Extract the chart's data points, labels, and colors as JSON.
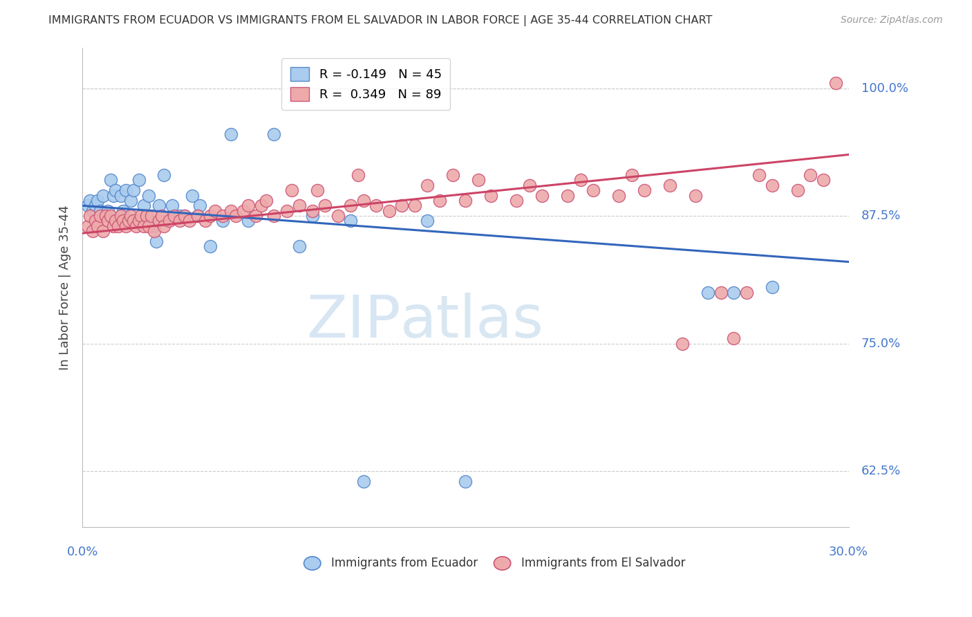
{
  "title": "IMMIGRANTS FROM ECUADOR VS IMMIGRANTS FROM EL SALVADOR IN LABOR FORCE | AGE 35-44 CORRELATION CHART",
  "source": "Source: ZipAtlas.com",
  "ylabel": "In Labor Force | Age 35-44",
  "xlim": [
    0.0,
    30.0
  ],
  "ylim": [
    57.0,
    104.0
  ],
  "yticks": [
    62.5,
    75.0,
    87.5,
    100.0
  ],
  "ytick_labels": [
    "62.5%",
    "75.0%",
    "87.5%",
    "100.0%"
  ],
  "ecuador_color_edge": "#5588CC",
  "ecuador_color_fill": "#AACCEE",
  "elsalvador_color_edge": "#CC5577",
  "elsalvador_color_fill": "#EEAAAA",
  "ecuador_line_color": "#3366BB",
  "elsalvador_line_color": "#CC4466",
  "ecuador_R": -0.149,
  "ecuador_N": 45,
  "elsalvador_R": 0.349,
  "elsalvador_N": 89,
  "legend_label_ecuador": "Immigrants from Ecuador",
  "legend_label_elsalvador": "Immigrants from El Salvador",
  "ecuador_x": [
    0.2,
    0.3,
    0.4,
    0.5,
    0.6,
    0.7,
    0.8,
    0.9,
    1.0,
    1.1,
    1.2,
    1.3,
    1.5,
    1.6,
    1.7,
    1.9,
    2.0,
    2.2,
    2.4,
    2.6,
    2.8,
    3.0,
    3.2,
    3.5,
    3.8,
    4.0,
    4.3,
    4.6,
    5.0,
    5.5,
    5.8,
    6.5,
    8.5,
    9.0,
    10.5,
    11.0,
    13.5,
    15.0,
    24.5,
    25.5,
    27.0,
    4.5,
    7.5,
    2.9,
    3.3
  ],
  "ecuador_y": [
    88.5,
    89.0,
    88.0,
    88.5,
    89.0,
    88.0,
    89.5,
    87.5,
    88.0,
    91.0,
    89.5,
    90.0,
    89.5,
    88.0,
    90.0,
    89.0,
    90.0,
    91.0,
    88.5,
    89.5,
    86.5,
    88.5,
    91.5,
    88.5,
    87.5,
    87.5,
    89.5,
    88.5,
    84.5,
    87.0,
    95.5,
    87.0,
    84.5,
    87.5,
    87.0,
    61.5,
    87.0,
    61.5,
    80.0,
    80.0,
    80.5,
    87.5,
    95.5,
    85.0,
    87.0
  ],
  "elsalvador_x": [
    0.2,
    0.3,
    0.4,
    0.5,
    0.6,
    0.7,
    0.8,
    0.9,
    1.0,
    1.1,
    1.2,
    1.3,
    1.4,
    1.5,
    1.6,
    1.7,
    1.8,
    1.9,
    2.0,
    2.1,
    2.2,
    2.3,
    2.4,
    2.5,
    2.6,
    2.7,
    2.8,
    3.0,
    3.1,
    3.2,
    3.4,
    3.6,
    3.8,
    4.0,
    4.2,
    4.5,
    4.8,
    5.0,
    5.2,
    5.5,
    5.8,
    6.0,
    6.3,
    6.8,
    7.0,
    7.5,
    8.0,
    8.5,
    9.0,
    9.5,
    10.0,
    10.5,
    11.0,
    11.5,
    12.0,
    12.5,
    13.0,
    14.0,
    15.0,
    16.0,
    17.0,
    18.0,
    19.0,
    20.0,
    21.0,
    22.0,
    23.0,
    24.0,
    25.0,
    26.0,
    27.0,
    28.0,
    29.0,
    6.5,
    7.2,
    8.2,
    9.2,
    10.8,
    13.5,
    15.5,
    17.5,
    19.5,
    21.5,
    23.5,
    25.5,
    26.5,
    28.5,
    14.5,
    29.5
  ],
  "elsalvador_y": [
    86.5,
    87.5,
    86.0,
    87.0,
    86.5,
    87.5,
    86.0,
    87.5,
    87.0,
    87.5,
    86.5,
    87.0,
    86.5,
    87.5,
    87.0,
    86.5,
    87.0,
    87.5,
    87.0,
    86.5,
    87.0,
    87.5,
    86.5,
    87.5,
    86.5,
    87.5,
    86.0,
    87.0,
    87.5,
    86.5,
    87.0,
    87.5,
    87.0,
    87.5,
    87.0,
    87.5,
    87.0,
    87.5,
    88.0,
    87.5,
    88.0,
    87.5,
    88.0,
    87.5,
    88.5,
    87.5,
    88.0,
    88.5,
    88.0,
    88.5,
    87.5,
    88.5,
    89.0,
    88.5,
    88.0,
    88.5,
    88.5,
    89.0,
    89.0,
    89.5,
    89.0,
    89.5,
    89.5,
    90.0,
    89.5,
    90.0,
    90.5,
    89.5,
    80.0,
    80.0,
    90.5,
    90.0,
    91.0,
    88.5,
    89.0,
    90.0,
    90.0,
    91.5,
    90.5,
    91.0,
    90.5,
    91.0,
    91.5,
    75.0,
    75.5,
    91.5,
    91.5,
    91.5,
    100.5
  ]
}
